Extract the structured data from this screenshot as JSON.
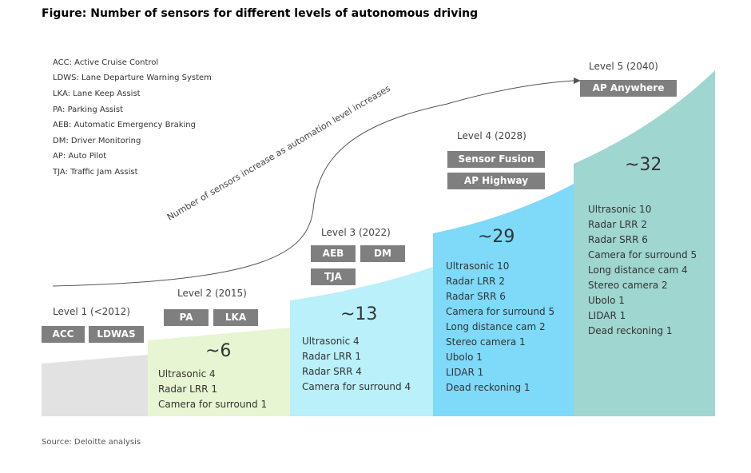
{
  "title": "Figure: Number of sensors for different levels of autonomous driving",
  "legend": [
    "ACC: Active Cruise Control",
    "LDWS: Lane Departure Warning System",
    "LKA: Lane Keep Assist",
    "PA: Parking Assist",
    "AEB: Automatic Emergency Braking",
    "DM: Driver Monitoring",
    "AP: Auto Pilot",
    "TJA: Traffic Jam Assist"
  ],
  "arrow_text": "Number of sensors increase as automation level increases",
  "colors": {
    "level1": "#e2e2e2",
    "level2": "#e8f5d2",
    "level3": "#b9f0f9",
    "level4": "#7fd9f9",
    "level5": "#9fd6d0",
    "tag": "#7f7f7f"
  },
  "levels": [
    {
      "label": "Level 1 (<2012)",
      "tags": [
        "ACC",
        "LDWAS"
      ],
      "count": "",
      "sensors": []
    },
    {
      "label": "Level 2 (2015)",
      "tags": [
        "PA",
        "LKA"
      ],
      "count": "~6",
      "sensors": [
        "Ultrasonic 4",
        "Radar LRR 1",
        "Camera  for surround  1"
      ]
    },
    {
      "label": "Level 3 (2022)",
      "tags": [
        "AEB",
        "DM",
        "TJA"
      ],
      "count": "~13",
      "sensors": [
        "Ultrasonic 4",
        "Radar LRR  1",
        "Radar SRR 4",
        "Camera  for surround  4"
      ]
    },
    {
      "label": "Level 4 (2028)",
      "tags": [
        "Sensor Fusion",
        "AP Highway"
      ],
      "count": "~29",
      "sensors": [
        "Ultrasonic  10",
        "Radar LRR  2",
        "Radar SRR 6",
        "Camera  for surround  5",
        "Long distance cam 2",
        "Stereo camera  1",
        "Ubolo  1",
        "LIDAR  1",
        "Dead reckoning  1"
      ]
    },
    {
      "label": "Level 5 (2040)",
      "tags": [
        "AP Anywhere"
      ],
      "count": "~32",
      "sensors": [
        "Ultrasonic  10",
        "Radar LRR  2",
        "Radar SRR  6",
        "Camera  for surround  5",
        "Long distance cam 4",
        "Stereo camera  2",
        "Ubolo  1",
        "LIDAR  1",
        "Dead reckoning  1"
      ]
    }
  ],
  "source": "Source: Deloitte analysis"
}
